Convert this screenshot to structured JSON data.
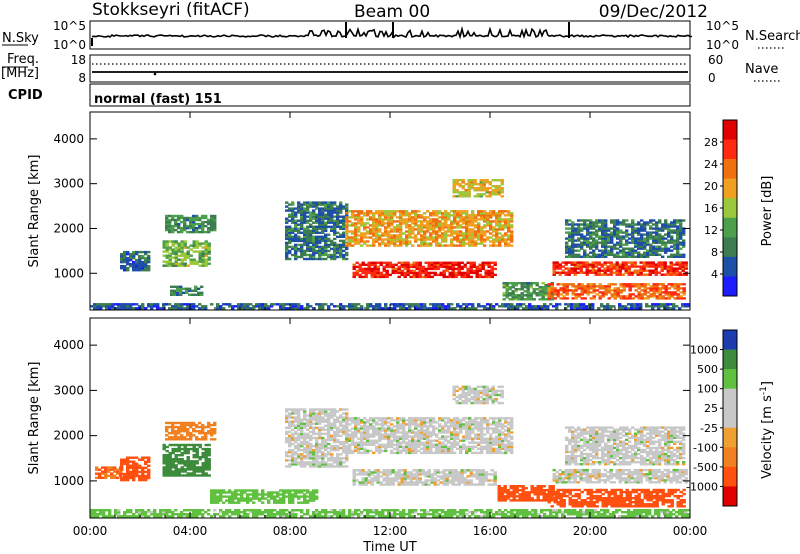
{
  "header": {
    "station": "Stokkseyri (fitACF)",
    "beam": "Beam 00",
    "date": "09/Dec/2012"
  },
  "aux_panels": {
    "nsky_label": "N.Sky",
    "nsearch_label": "N.Search",
    "freq_label": "Freq.",
    "freq_unit": "[MHz]",
    "nave_label": "Nave",
    "cpid_label": "CPID",
    "cpid_value": "normal (fast) 151",
    "noise_ticks": [
      "10^5",
      "10^0"
    ],
    "freq_ticks": [
      "18",
      "8"
    ],
    "nave_ticks": [
      "60",
      "0"
    ]
  },
  "colors": {
    "power_scale": [
      "#1c1cff",
      "#1e4fa8",
      "#3c7c50",
      "#4ca04c",
      "#9bc83a",
      "#f0a020",
      "#f07010",
      "#ff2a10",
      "#e00000"
    ],
    "velocity_scale": [
      "#e00000",
      "#ff5010",
      "#f08020",
      "#f0a030",
      "#c8c8c8",
      "#c8c8c8",
      "#60c040",
      "#3c8c3c",
      "#1c3cb0"
    ]
  },
  "chart_data": [
    {
      "type": "heatmap",
      "panel": "power",
      "x_ticks": [
        "00:00",
        "04:00",
        "08:00",
        "12:00",
        "16:00",
        "20:00",
        "00:00"
      ],
      "ylabel": "Slant Range [km]",
      "y_ticks": [
        1000,
        2000,
        3000,
        4000
      ],
      "ylim": [
        180,
        4600
      ],
      "xlim_hours": [
        0,
        24
      ],
      "colorbar_label": "Power [dB]",
      "colorbar_ticks": [
        4,
        8,
        12,
        16,
        20,
        24,
        28
      ],
      "colorbar_range": [
        0,
        32
      ],
      "echo_regions": [
        {
          "t": [
            0.0,
            23.9
          ],
          "r": [
            200,
            330
          ],
          "level": 6
        },
        {
          "t": [
            1.2,
            2.4
          ],
          "r": [
            1050,
            1500
          ],
          "level": 7
        },
        {
          "t": [
            2.9,
            4.8
          ],
          "r": [
            1150,
            1700
          ],
          "level": 14
        },
        {
          "t": [
            3.0,
            5.0
          ],
          "r": [
            1900,
            2300
          ],
          "level": 10
        },
        {
          "t": [
            3.2,
            4.5
          ],
          "r": [
            500,
            700
          ],
          "level": 9
        },
        {
          "t": [
            7.8,
            10.2
          ],
          "r": [
            1300,
            2600
          ],
          "level": 8
        },
        {
          "t": [
            10.2,
            16.8
          ],
          "r": [
            1600,
            2400
          ],
          "level": 20
        },
        {
          "t": [
            10.5,
            16.2
          ],
          "r": [
            900,
            1250
          ],
          "level": 28
        },
        {
          "t": [
            14.5,
            16.5
          ],
          "r": [
            2700,
            3100
          ],
          "level": 18
        },
        {
          "t": [
            16.5,
            18.5
          ],
          "r": [
            400,
            800
          ],
          "level": 11
        },
        {
          "t": [
            18.5,
            23.8
          ],
          "r": [
            950,
            1250
          ],
          "level": 27
        },
        {
          "t": [
            18.3,
            23.8
          ],
          "r": [
            420,
            750
          ],
          "level": 24
        },
        {
          "t": [
            19.0,
            23.8
          ],
          "r": [
            1350,
            2200
          ],
          "level": 8
        }
      ]
    },
    {
      "type": "heatmap",
      "panel": "velocity",
      "x_ticks": [
        "00:00",
        "04:00",
        "08:00",
        "12:00",
        "16:00",
        "20:00",
        "00:00"
      ],
      "xlabel": "Time UT",
      "ylabel": "Slant Range [km]",
      "y_ticks": [
        1000,
        2000,
        3000,
        4000
      ],
      "ylim": [
        180,
        4600
      ],
      "xlim_hours": [
        0,
        24
      ],
      "colorbar_label": "Velocity [m s",
      "colorbar_unit_exponent": "-1",
      "colorbar_ticks": [
        "1000",
        "500",
        "100",
        "25",
        "-25",
        "-100",
        "-500",
        "-1000"
      ],
      "echo_regions": [
        {
          "t": [
            0.0,
            23.9
          ],
          "r": [
            200,
            350
          ],
          "v": 50
        },
        {
          "t": [
            0.2,
            1.2
          ],
          "r": [
            1050,
            1300
          ],
          "v": -200
        },
        {
          "t": [
            1.2,
            2.4
          ],
          "r": [
            1000,
            1500
          ],
          "v": -300
        },
        {
          "t": [
            2.9,
            4.8
          ],
          "r": [
            1100,
            1800
          ],
          "v": 200
        },
        {
          "t": [
            3.0,
            5.0
          ],
          "r": [
            1900,
            2300
          ],
          "v": -150
        },
        {
          "t": [
            4.8,
            9.0
          ],
          "r": [
            500,
            800
          ],
          "v": 60
        },
        {
          "t": [
            7.8,
            10.2
          ],
          "r": [
            1300,
            2600
          ],
          "v": 0
        },
        {
          "t": [
            10.2,
            16.8
          ],
          "r": [
            1600,
            2400
          ],
          "v": 0
        },
        {
          "t": [
            10.5,
            16.2
          ],
          "r": [
            900,
            1250
          ],
          "v": 0
        },
        {
          "t": [
            14.5,
            16.5
          ],
          "r": [
            2700,
            3100
          ],
          "v": 0
        },
        {
          "t": [
            16.3,
            18.6
          ],
          "r": [
            550,
            900
          ],
          "v": -400
        },
        {
          "t": [
            18.5,
            23.8
          ],
          "r": [
            950,
            1250
          ],
          "v": 0
        },
        {
          "t": [
            18.3,
            23.8
          ],
          "r": [
            420,
            800
          ],
          "v": -400
        },
        {
          "t": [
            19.0,
            23.8
          ],
          "r": [
            1350,
            2200
          ],
          "v": 0
        }
      ]
    }
  ]
}
